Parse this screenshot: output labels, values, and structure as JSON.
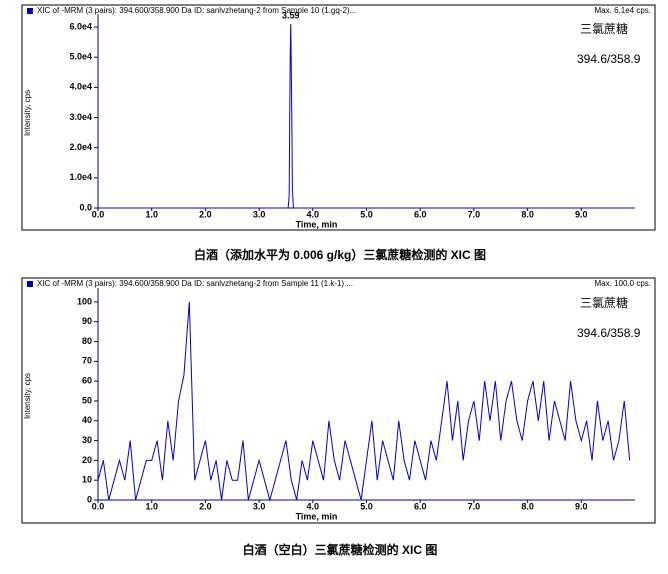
{
  "chart_data": [
    {
      "type": "line",
      "title": "XIC of -MRM (3 pairs): 394.600/358.900 Da ID: sanlvzhetang-2 from Sample 10 (1.gq-2)...",
      "max_label": "Max. 6.1e4 cps.",
      "compound": "三氯蔗糖",
      "transition": "394.6/358.9",
      "peak_label": "3.59",
      "xlabel": "Time, min",
      "ylabel": "Intensity, cps",
      "caption": "白酒（添加水平为 0.006 g/kg）三氯蔗糖检测的 XIC 图",
      "color": "#0000cc",
      "x": [
        0,
        3.54,
        3.56,
        3.57,
        3.58,
        3.59,
        3.6,
        3.61,
        3.62,
        3.64,
        10
      ],
      "values": [
        0,
        0,
        4000,
        30000,
        52000,
        61000,
        45000,
        28000,
        6000,
        0,
        0
      ],
      "xlim": [
        0,
        10
      ],
      "ylim": [
        0,
        63000
      ],
      "xticks": [
        {
          "value": 0,
          "label": "0.0"
        },
        {
          "value": 1,
          "label": "1.0"
        },
        {
          "value": 2,
          "label": "2.0"
        },
        {
          "value": 3,
          "label": "3.0"
        },
        {
          "value": 4,
          "label": "4.0"
        },
        {
          "value": 5,
          "label": "5.0"
        },
        {
          "value": 6,
          "label": "6.0"
        },
        {
          "value": 7,
          "label": "7.0"
        },
        {
          "value": 8,
          "label": "8.0"
        },
        {
          "value": 9,
          "label": "9.0"
        }
      ],
      "yticks": [
        {
          "value": 0,
          "label": "0.0"
        },
        {
          "value": 10000,
          "label": "1.0e4"
        },
        {
          "value": 20000,
          "label": "2.0e4"
        },
        {
          "value": 30000,
          "label": "3.0e4"
        },
        {
          "value": 40000,
          "label": "4.0e4"
        },
        {
          "value": 50000,
          "label": "5.0e4"
        },
        {
          "value": 60000,
          "label": "6.0e4"
        }
      ]
    },
    {
      "type": "line",
      "title": "XIC of -MRM (3 pairs): 394.600/358.900 Da ID: sanlvzhetang-2 from Sample 11 (1.k-1) ...",
      "max_label": "Max. 100.0 cps.",
      "compound": "三氯蔗糖",
      "transition": "394.6/358.9",
      "xlabel": "Time, min",
      "ylabel": "Intensity, cps",
      "caption": "白酒（空白）三氯蔗糖检测的 XIC 图",
      "color": "#0000cc",
      "x": [
        0,
        0.1,
        0.2,
        0.3,
        0.4,
        0.5,
        0.6,
        0.7,
        0.8,
        0.9,
        1,
        1.1,
        1.2,
        1.3,
        1.4,
        1.5,
        1.6,
        1.7,
        1.8,
        1.9,
        2,
        2.1,
        2.2,
        2.3,
        2.4,
        2.5,
        2.6,
        2.7,
        2.8,
        2.9,
        3,
        3.1,
        3.2,
        3.3,
        3.4,
        3.5,
        3.6,
        3.7,
        3.8,
        3.9,
        4,
        4.1,
        4.2,
        4.3,
        4.4,
        4.5,
        4.6,
        4.7,
        4.8,
        4.9,
        5,
        5.1,
        5.2,
        5.3,
        5.4,
        5.5,
        5.6,
        5.7,
        5.8,
        5.9,
        6,
        6.1,
        6.2,
        6.3,
        6.4,
        6.5,
        6.6,
        6.7,
        6.8,
        6.9,
        7,
        7.1,
        7.2,
        7.3,
        7.4,
        7.5,
        7.6,
        7.7,
        7.8,
        7.9,
        8,
        8.1,
        8.2,
        8.3,
        8.4,
        8.5,
        8.6,
        8.7,
        8.8,
        8.9,
        9,
        9.1,
        9.2,
        9.3,
        9.4,
        9.5,
        9.6,
        9.7,
        9.8,
        9.9
      ],
      "values": [
        10,
        20,
        0,
        10,
        20,
        10,
        30,
        0,
        10,
        20,
        20,
        30,
        10,
        40,
        20,
        50,
        63,
        100,
        10,
        20,
        30,
        10,
        20,
        0,
        20,
        10,
        10,
        30,
        0,
        10,
        20,
        10,
        0,
        10,
        20,
        30,
        10,
        0,
        20,
        10,
        30,
        20,
        10,
        40,
        20,
        10,
        30,
        20,
        10,
        0,
        20,
        40,
        10,
        30,
        20,
        10,
        40,
        20,
        10,
        30,
        20,
        10,
        30,
        20,
        40,
        60,
        30,
        50,
        20,
        40,
        50,
        30,
        60,
        40,
        60,
        30,
        50,
        60,
        40,
        30,
        50,
        60,
        40,
        60,
        30,
        50,
        40,
        30,
        60,
        40,
        30,
        40,
        20,
        50,
        30,
        40,
        20,
        30,
        50,
        20
      ],
      "xlim": [
        0,
        10
      ],
      "ylim": [
        0,
        105
      ],
      "xticks": [
        {
          "value": 0,
          "label": "0.0"
        },
        {
          "value": 1,
          "label": "1.0"
        },
        {
          "value": 2,
          "label": "2.0"
        },
        {
          "value": 3,
          "label": "3.0"
        },
        {
          "value": 4,
          "label": "4.0"
        },
        {
          "value": 5,
          "label": "5.0"
        },
        {
          "value": 6,
          "label": "6.0"
        },
        {
          "value": 7,
          "label": "7.0"
        },
        {
          "value": 8,
          "label": "8.0"
        },
        {
          "value": 9,
          "label": "9.0"
        }
      ],
      "yticks": [
        0,
        10,
        20,
        30,
        40,
        50,
        60,
        70,
        80,
        90,
        100
      ]
    }
  ]
}
